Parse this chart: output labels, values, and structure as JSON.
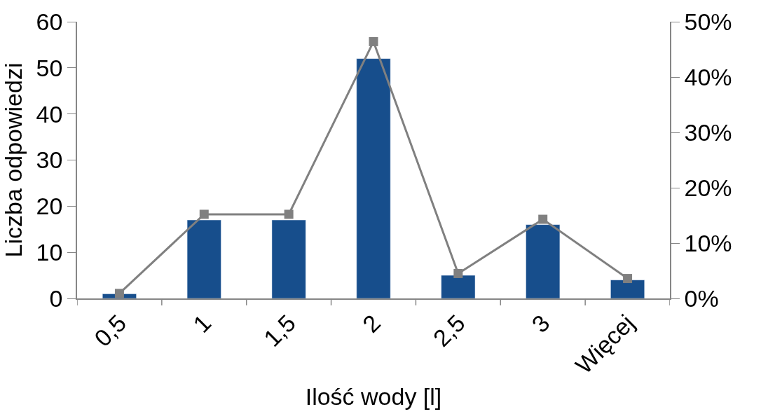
{
  "chart_data": {
    "type": "bar",
    "xlabel": "Ilość wody [l]",
    "ylabel": "Liczba odpowiedzi",
    "categories": [
      "0,5",
      "1",
      "1,5",
      "2",
      "2,5",
      "3",
      "Więcej"
    ],
    "series": [
      {
        "color": "#174e8c",
        "values": [
          1,
          17,
          17,
          52,
          5,
          16,
          4
        ]
      },
      {
        "type": "line",
        "axis": "y2",
        "color": "#808080",
        "marker": "square",
        "line_style": "solid",
        "values": [
          0.9,
          15.2,
          15.2,
          46.4,
          4.5,
          14.3,
          3.6
        ]
      }
    ],
    "ylim": [
      0,
      60
    ],
    "yticks": [
      0,
      10,
      20,
      30,
      40,
      50,
      60
    ],
    "y2lim": [
      0,
      50
    ],
    "y2ticks": [
      {
        "value": 0,
        "label": "0%"
      },
      {
        "value": 10,
        "label": "10%"
      },
      {
        "value": 20,
        "label": "20%"
      },
      {
        "value": 30,
        "label": "30%"
      },
      {
        "value": 40,
        "label": "40%"
      },
      {
        "value": 50,
        "label": "50%"
      }
    ]
  }
}
